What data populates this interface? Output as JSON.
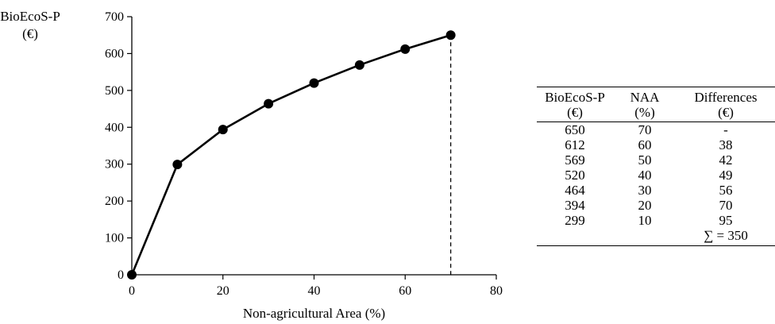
{
  "chart_data": {
    "type": "line",
    "ylabel": [
      "BioEcoS-P",
      "(€)"
    ],
    "xlabel": "Non-agricultural Area (%)",
    "x": [
      0,
      10,
      20,
      30,
      40,
      50,
      60,
      70
    ],
    "series": [
      {
        "values": [
          0,
          299,
          394,
          464,
          520,
          569,
          612,
          650
        ]
      }
    ],
    "xlim": [
      0,
      80
    ],
    "ylim": [
      0,
      700
    ],
    "xticks": [
      0,
      20,
      40,
      60,
      80
    ],
    "yticks": [
      0,
      100,
      200,
      300,
      400,
      500,
      600,
      700
    ],
    "dashed_drop_at_x": 70,
    "grid": false,
    "color": "#000000"
  },
  "table": {
    "headers": [
      [
        "BioEcoS-P",
        "NAA",
        "Differences"
      ],
      [
        "(€)",
        "(%)",
        "(€)"
      ]
    ],
    "rows": [
      [
        "650",
        "70",
        "-"
      ],
      [
        "612",
        "60",
        "38"
      ],
      [
        "569",
        "50",
        "42"
      ],
      [
        "520",
        "40",
        "49"
      ],
      [
        "464",
        "30",
        "56"
      ],
      [
        "394",
        "20",
        "70"
      ],
      [
        "299",
        "10",
        "95"
      ]
    ],
    "total": "∑ = 350"
  }
}
